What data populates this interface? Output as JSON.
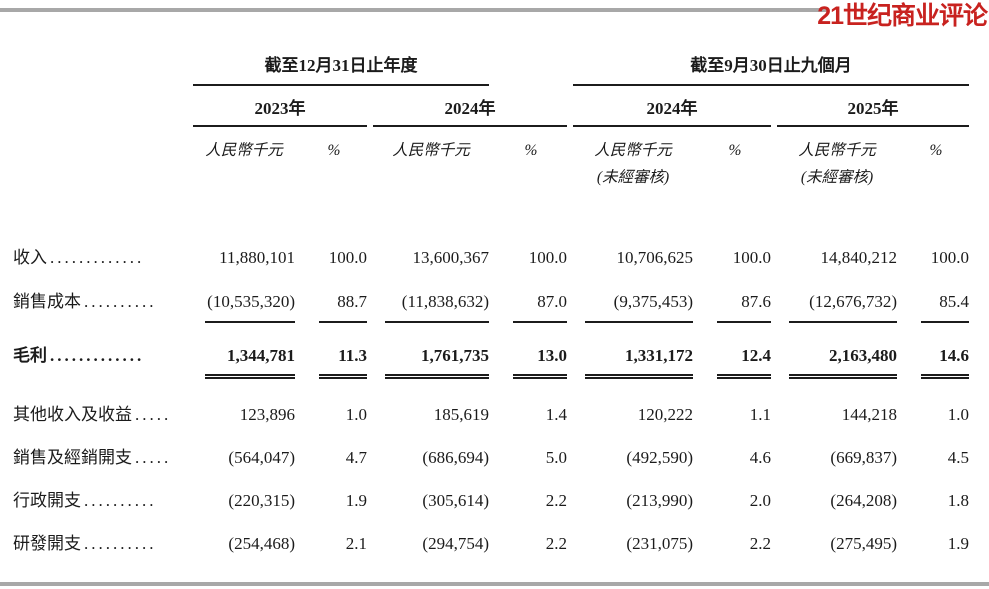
{
  "logo": {
    "text": "21世纪商业评论",
    "color": "#c8221f"
  },
  "colors": {
    "text": "#1b1b1b",
    "rule_gray": "#a8a8a8",
    "line_black": "#1c1c1c"
  },
  "table": {
    "groups": [
      {
        "title": "截至12月31日止年度",
        "years": [
          "2023年",
          "2024年"
        ]
      },
      {
        "title": "截至9月30日止九個月",
        "years": [
          "2024年",
          "2025年"
        ]
      }
    ],
    "subheaders": {
      "amount": "人民幣千元",
      "percent": "%",
      "unaudited": "(未經審核)"
    },
    "rows": [
      {
        "label": "收入",
        "dots": ".............",
        "bold": false,
        "underline": "none",
        "values": [
          "11,880,101",
          "100.0",
          "13,600,367",
          "100.0",
          "10,706,625",
          "100.0",
          "14,840,212",
          "100.0"
        ]
      },
      {
        "label": "銷售成本",
        "dots": "..........",
        "bold": false,
        "underline": "single",
        "values": [
          "(10,535,320)",
          "88.7",
          "(11,838,632)",
          "87.0",
          "(9,375,453)",
          "87.6",
          "(12,676,732)",
          "85.4"
        ]
      },
      {
        "label": "毛利",
        "dots": ".............",
        "bold": true,
        "underline": "double",
        "values": [
          "1,344,781",
          "11.3",
          "1,761,735",
          "13.0",
          "1,331,172",
          "12.4",
          "2,163,480",
          "14.6"
        ]
      },
      {
        "label": "其他收入及收益",
        "dots": ".....",
        "bold": false,
        "underline": "none",
        "values": [
          "123,896",
          "1.0",
          "185,619",
          "1.4",
          "120,222",
          "1.1",
          "144,218",
          "1.0"
        ]
      },
      {
        "label": "銷售及經銷開支",
        "dots": ".....",
        "bold": false,
        "underline": "none",
        "values": [
          "(564,047)",
          "4.7",
          "(686,694)",
          "5.0",
          "(492,590)",
          "4.6",
          "(669,837)",
          "4.5"
        ]
      },
      {
        "label": "行政開支",
        "dots": "..........",
        "bold": false,
        "underline": "none",
        "values": [
          "(220,315)",
          "1.9",
          "(305,614)",
          "2.2",
          "(213,990)",
          "2.0",
          "(264,208)",
          "1.8"
        ]
      },
      {
        "label": "研發開支",
        "dots": "..........",
        "bold": false,
        "underline": "none",
        "values": [
          "(254,468)",
          "2.1",
          "(294,754)",
          "2.2",
          "(231,075)",
          "2.2",
          "(275,495)",
          "1.9"
        ]
      }
    ]
  }
}
